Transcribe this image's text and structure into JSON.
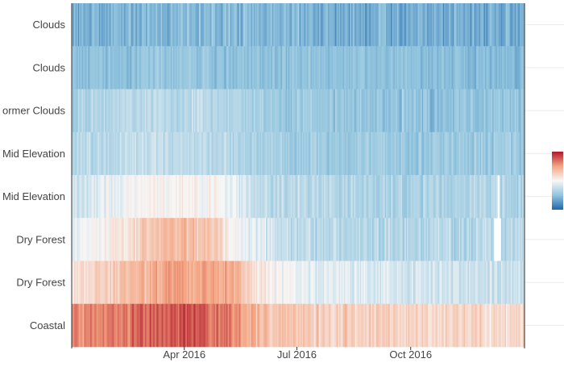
{
  "chart_data": {
    "type": "heatmap",
    "title": "",
    "xlabel": "",
    "ylabel": "",
    "x_domain": [
      "2016-01-01",
      "2016-12-31"
    ],
    "x_ticks": [
      {
        "date": "2016-04-01",
        "label": "Apr 2016"
      },
      {
        "date": "2016-07-01",
        "label": "Jul 2016"
      },
      {
        "date": "2016-10-01",
        "label": "Oct 2016"
      }
    ],
    "rows": [
      {
        "label": "Clouds",
        "base": [
          [
            0,
            -0.6
          ],
          [
            90,
            -0.55
          ],
          [
            180,
            -0.58
          ],
          [
            270,
            -0.62
          ],
          [
            366,
            -0.64
          ]
        ],
        "noise": 0.13
      },
      {
        "label": "Clouds",
        "base": [
          [
            0,
            -0.52
          ],
          [
            90,
            -0.48
          ],
          [
            180,
            -0.5
          ],
          [
            270,
            -0.53
          ],
          [
            366,
            -0.55
          ]
        ],
        "noise": 0.08
      },
      {
        "label": "ormer Clouds",
        "base": [
          [
            0,
            -0.38
          ],
          [
            60,
            -0.3
          ],
          [
            100,
            -0.3
          ],
          [
            180,
            -0.45
          ],
          [
            270,
            -0.5
          ],
          [
            366,
            -0.48
          ]
        ],
        "noise": 0.1
      },
      {
        "label": "Mid Elevation",
        "base": [
          [
            0,
            -0.35
          ],
          [
            60,
            -0.25
          ],
          [
            120,
            -0.3
          ],
          [
            180,
            -0.42
          ],
          [
            270,
            -0.46
          ],
          [
            366,
            -0.42
          ]
        ],
        "noise": 0.09
      },
      {
        "label": "Mid Elevation",
        "base": [
          [
            0,
            -0.2
          ],
          [
            60,
            0.02
          ],
          [
            120,
            0.0
          ],
          [
            150,
            -0.28
          ],
          [
            270,
            -0.38
          ],
          [
            366,
            -0.35
          ]
        ],
        "noise": 0.1
      },
      {
        "label": "Dry Forest",
        "base": [
          [
            0,
            -0.1
          ],
          [
            45,
            0.15
          ],
          [
            75,
            0.35
          ],
          [
            110,
            0.32
          ],
          [
            135,
            -0.05
          ],
          [
            180,
            -0.3
          ],
          [
            270,
            -0.32
          ],
          [
            366,
            -0.3
          ]
        ],
        "noise": 0.11
      },
      {
        "label": "Dry Forest",
        "base": [
          [
            0,
            0.12
          ],
          [
            45,
            0.35
          ],
          [
            80,
            0.5
          ],
          [
            130,
            0.45
          ],
          [
            150,
            0.1
          ],
          [
            200,
            -0.08
          ],
          [
            270,
            -0.18
          ],
          [
            366,
            -0.22
          ]
        ],
        "noise": 0.11
      },
      {
        "label": "Coastal",
        "base": [
          [
            0,
            0.55
          ],
          [
            50,
            0.7
          ],
          [
            90,
            0.8
          ],
          [
            120,
            0.72
          ],
          [
            150,
            0.35
          ],
          [
            200,
            0.25
          ],
          [
            270,
            0.2
          ],
          [
            366,
            0.18
          ]
        ],
        "noise": 0.12
      }
    ],
    "missing": [
      {
        "row": 4,
        "start_day": 344,
        "end_day": 345
      },
      {
        "row": 5,
        "start_day": 341,
        "end_day": 346
      }
    ],
    "colorbar": {
      "scale": "diverging",
      "low_color": "#2166ac",
      "mid_color": "#f7f7f7",
      "high_color": "#b2182b",
      "min": -1,
      "max": 1
    },
    "grid": true,
    "legend": "right"
  }
}
